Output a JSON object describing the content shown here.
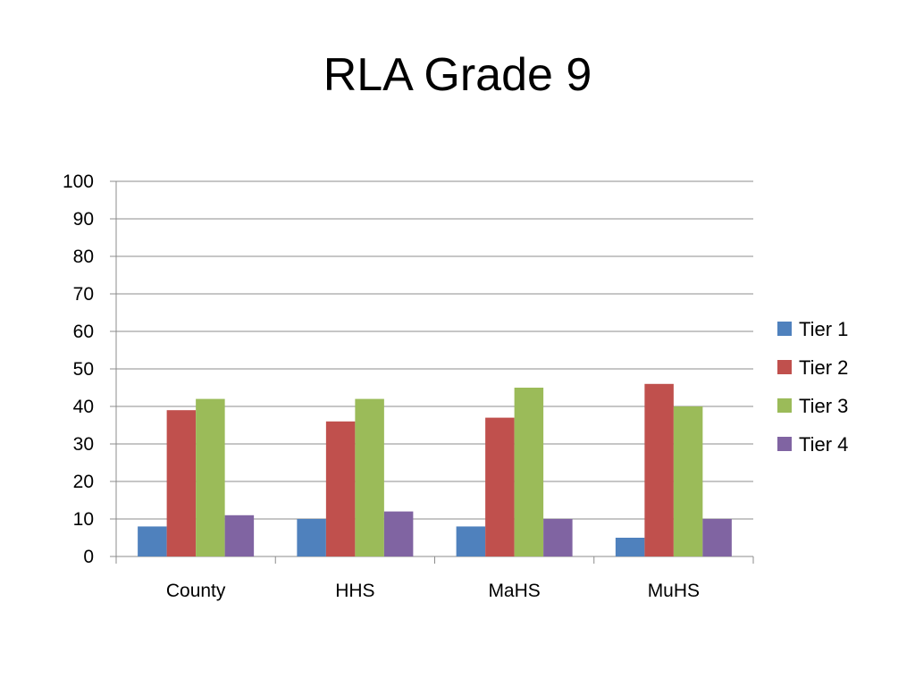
{
  "title": "RLA Grade 9",
  "chart_data": {
    "type": "bar",
    "title": "RLA Grade 9",
    "xlabel": "",
    "ylabel": "",
    "categories": [
      "County",
      "HHS",
      "MaHS",
      "MuHS"
    ],
    "ylim": [
      0,
      100
    ],
    "yticks": [
      0,
      10,
      20,
      30,
      40,
      50,
      60,
      70,
      80,
      90,
      100
    ],
    "grid": true,
    "legend_position": "right",
    "series": [
      {
        "name": "Tier 1",
        "color": "#4F81BD",
        "values": [
          8,
          10,
          8,
          5
        ]
      },
      {
        "name": "Tier 2",
        "color": "#C0504D",
        "values": [
          39,
          36,
          37,
          46
        ]
      },
      {
        "name": "Tier 3",
        "color": "#9BBB59",
        "values": [
          42,
          42,
          45,
          40
        ]
      },
      {
        "name": "Tier 4",
        "color": "#8064A2",
        "values": [
          11,
          12,
          10,
          10
        ]
      }
    ]
  }
}
